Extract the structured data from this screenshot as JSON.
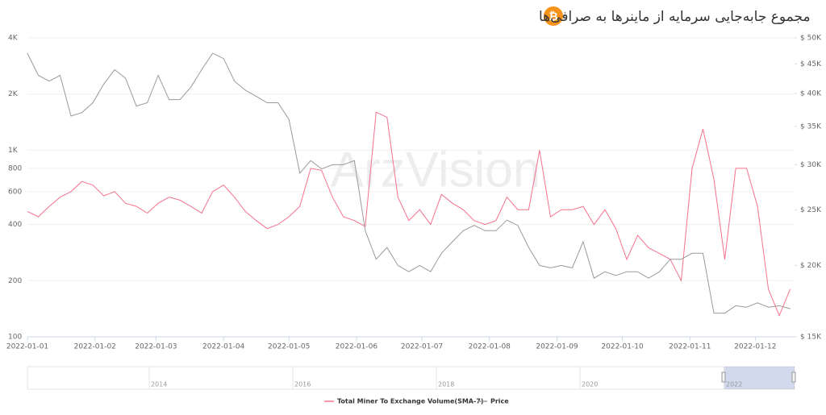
{
  "chart_data": {
    "type": "line",
    "title": "مجموع جابه‌جایی سرمایه از ماینرها به صرافی‌ها",
    "watermark": "ArzVision",
    "x": [
      0,
      5,
      10,
      15,
      20,
      25,
      30,
      35,
      40,
      45,
      50,
      55,
      60,
      65,
      70,
      75,
      80,
      85,
      90,
      95,
      100,
      105,
      110,
      115,
      120,
      125,
      130,
      135,
      140,
      145,
      150,
      155,
      160,
      165,
      170,
      175,
      180,
      185,
      190,
      195,
      200,
      205,
      210,
      215,
      220,
      225,
      230,
      235,
      240,
      245,
      250,
      255,
      260,
      265,
      270,
      275,
      280,
      285,
      290,
      295,
      300,
      305,
      310,
      315,
      320,
      325,
      330,
      335,
      340,
      345,
      350
    ],
    "xlim": [
      0,
      352
    ],
    "xticks": [
      {
        "value": 0,
        "label": "2022-01-01"
      },
      {
        "value": 31,
        "label": "2022-01-02"
      },
      {
        "value": 59,
        "label": "2022-01-03"
      },
      {
        "value": 90,
        "label": "2022-01-04"
      },
      {
        "value": 120,
        "label": "2022-01-05"
      },
      {
        "value": 151,
        "label": "2022-01-06"
      },
      {
        "value": 181,
        "label": "2022-01-07"
      },
      {
        "value": 212,
        "label": "2022-01-08"
      },
      {
        "value": 243,
        "label": "2022-01-09"
      },
      {
        "value": 273,
        "label": "2022-01-10"
      },
      {
        "value": 304,
        "label": "2022-01-11"
      },
      {
        "value": 334,
        "label": "2022-01-12"
      }
    ],
    "ylim": [
      100,
      4000
    ],
    "yscale": "log",
    "yticks": [
      100,
      200,
      400,
      600,
      800,
      {
        "value": 1000,
        "label": "1K"
      },
      {
        "value": 2000,
        "label": "2K"
      },
      {
        "value": 4000,
        "label": "4K"
      }
    ],
    "y2lim": [
      15000,
      50000
    ],
    "y2scale": "log",
    "y2ticks": [
      {
        "value": 15000,
        "label": "$ 15K"
      },
      {
        "value": 20000,
        "label": "$ 20K"
      },
      {
        "value": 25000,
        "label": "$ 25K"
      },
      {
        "value": 30000,
        "label": "$ 30K"
      },
      {
        "value": 35000,
        "label": "$ 35K"
      },
      {
        "value": 40000,
        "label": "$ 40K"
      },
      {
        "value": 45000,
        "label": "$ 45K"
      },
      {
        "value": 50000,
        "label": "$ 50K"
      }
    ],
    "grid": true,
    "legend": "bottom",
    "series": [
      {
        "name": "Total Miner To Exchange Volume(SMA-7)",
        "color": "#f4728c",
        "values": [
          470,
          440,
          500,
          560,
          600,
          680,
          650,
          570,
          600,
          520,
          500,
          460,
          520,
          560,
          540,
          500,
          460,
          600,
          650,
          560,
          470,
          420,
          380,
          400,
          440,
          500,
          800,
          780,
          560,
          440,
          420,
          390,
          1600,
          1500,
          560,
          420,
          480,
          400,
          580,
          520,
          480,
          420,
          400,
          420,
          560,
          480,
          480,
          1000,
          440,
          480,
          480,
          500,
          400,
          480,
          380,
          260,
          350,
          300,
          280,
          260,
          200,
          800,
          1300,
          700,
          260,
          800,
          800,
          500,
          180,
          130,
          180
        ]
      },
      {
        "name": "Price",
        "color": "#9a9a9a",
        "axis": "y2",
        "values": [
          47000,
          43000,
          42000,
          43000,
          36500,
          37000,
          38500,
          41500,
          44000,
          42500,
          38000,
          38500,
          43000,
          39000,
          39000,
          41000,
          44000,
          47000,
          46000,
          42000,
          40500,
          39500,
          38500,
          38500,
          36000,
          29000,
          30500,
          29500,
          30000,
          30000,
          30500,
          23000,
          20500,
          21500,
          20000,
          19500,
          20000,
          19500,
          21000,
          22000,
          23000,
          23500,
          23000,
          23000,
          24000,
          23500,
          21500,
          20000,
          19800,
          20000,
          19800,
          22000,
          19000,
          19500,
          19200,
          19500,
          19500,
          19000,
          19500,
          20500,
          20500,
          21000,
          21000,
          16500,
          16500,
          17000,
          16900,
          17200,
          16900,
          17000,
          16800
        ]
      }
    ],
    "navigator": {
      "labels": [
        "2014",
        "2016",
        "2018",
        "2020",
        "2022"
      ]
    }
  }
}
